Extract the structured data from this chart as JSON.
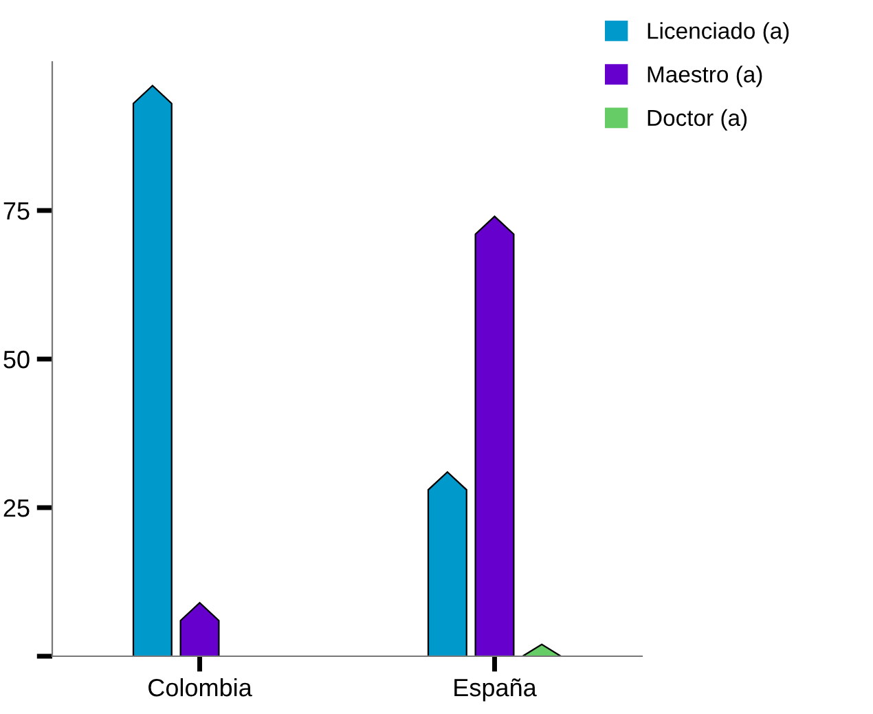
{
  "chart_data": {
    "type": "bar",
    "categories": [
      "Colombia",
      "España"
    ],
    "series": [
      {
        "name": "Licenciado (a)",
        "color": "#0099cc",
        "values": [
          96,
          31
        ]
      },
      {
        "name": "Maestro (a)",
        "color": "#6600cc",
        "values": [
          9,
          74
        ]
      },
      {
        "name": "Doctor (a)",
        "color": "#66cc66",
        "values": [
          0,
          2
        ]
      }
    ],
    "ylim": [
      0,
      100
    ],
    "yticks": [
      {
        "value": 0,
        "label": null
      },
      25,
      50,
      75
    ],
    "grid": false,
    "legend": "top right"
  }
}
